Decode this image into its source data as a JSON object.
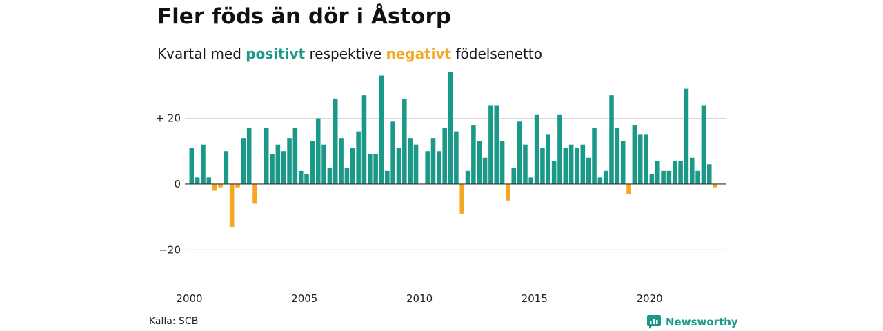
{
  "title": "Fler föds än dör i Åstorp",
  "subtitle": {
    "prefix": "Kvartal med",
    "positive_word": "positivt",
    "middle": "respektive",
    "negative_word": "negativt",
    "suffix": "födelsenetto"
  },
  "source": "Källa: SCB",
  "brand": {
    "name": "Newsworthy",
    "icon": "newsworthy-logo-icon"
  },
  "colors": {
    "positive": "#1a9988",
    "negative": "#f5a623",
    "grid": "#d9d9d9",
    "zero_line": "#333333"
  },
  "chart_data": {
    "type": "bar",
    "title": "Fler föds än dör i Åstorp",
    "xlabel": "",
    "ylabel": "",
    "ylim": [
      -30,
      35
    ],
    "xlim": [
      2000.0,
      2023.25
    ],
    "y_ticks": [
      {
        "value": 20,
        "label": "+ 20"
      },
      {
        "value": 0,
        "label": "0"
      },
      {
        "value": -20,
        "label": "−20"
      }
    ],
    "x_ticks": [
      "2000",
      "2005",
      "2010",
      "2015",
      "2020"
    ],
    "grid": true,
    "legend": "none",
    "start": "2000 Q1",
    "frequency": "quarterly",
    "values": [
      11,
      2,
      12,
      2,
      -2,
      -1,
      10,
      -13,
      -1,
      14,
      17,
      -6,
      0,
      17,
      9,
      12,
      10,
      14,
      17,
      4,
      3,
      13,
      20,
      12,
      5,
      26,
      14,
      5,
      11,
      16,
      27,
      9,
      9,
      33,
      4,
      19,
      11,
      26,
      14,
      12,
      0,
      10,
      14,
      10,
      17,
      34,
      16,
      -9,
      4,
      18,
      13,
      8,
      24,
      24,
      13,
      -5,
      5,
      19,
      12,
      2,
      21,
      11,
      15,
      7,
      21,
      11,
      12,
      11,
      12,
      8,
      17,
      2,
      4,
      27,
      17,
      13,
      -3,
      18,
      15,
      15,
      3,
      7,
      4,
      4,
      7,
      7,
      29,
      8,
      4,
      24,
      6,
      -1
    ]
  }
}
